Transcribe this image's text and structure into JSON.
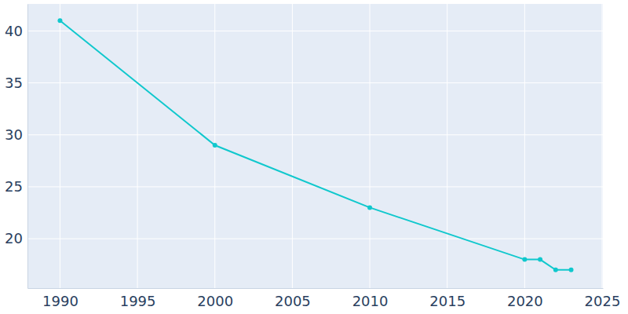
{
  "chart_data": {
    "type": "line",
    "x": [
      1990,
      2000,
      2010,
      2020,
      2021,
      2022,
      2023
    ],
    "values": [
      41,
      29,
      23,
      18,
      18,
      17,
      17
    ],
    "color": "#10c8cd",
    "marker": "circle",
    "xlim": [
      1987.9,
      2025.05
    ],
    "xticks": [
      1990,
      1995,
      2000,
      2005,
      2010,
      2015,
      2020,
      2025
    ],
    "ylim": [
      15.25,
      42.6
    ],
    "yticks": [
      20,
      25,
      30,
      35,
      40
    ],
    "grid": true
  }
}
